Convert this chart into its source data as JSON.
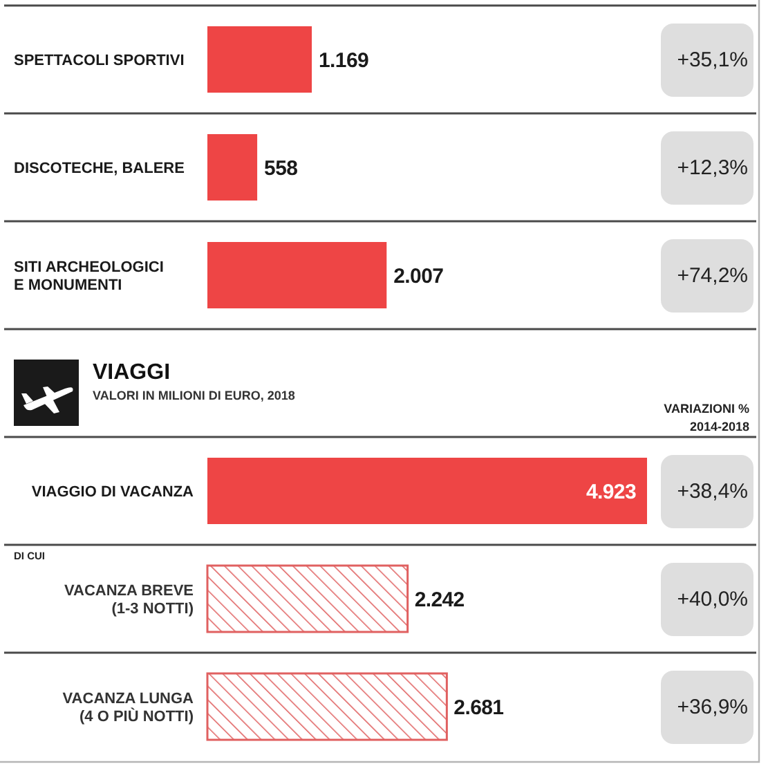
{
  "chart_data": [
    {
      "type": "bar",
      "orientation": "horizontal",
      "categories": [
        "SPETTACOLI SPORTIVI",
        "DISCOTECHE, BALERE",
        "SITI ARCHEOLOGICI\nE MONUMENTI"
      ],
      "values": [
        1169,
        558,
        2007
      ],
      "value_labels": [
        "1.169",
        "558",
        "2.007"
      ],
      "color": "#ee4545",
      "annotations": [
        "+35,1%",
        "+12,3%",
        "+74,2%"
      ]
    },
    {
      "type": "bar",
      "orientation": "horizontal",
      "title": "VIAGGI",
      "subtitle": "VALORI IN MILIONI DI EURO, 2018",
      "categories": [
        "VIAGGIO DI VACANZA",
        "VACANZA BREVE\n(1-3 NOTTI)",
        "VACANZA LUNGA\n(4 O PIÙ NOTTI)"
      ],
      "series": [
        {
          "color": "#ee4545",
          "values": [
            4923,
            null,
            null
          ],
          "value_labels": [
            "4.923",
            null,
            null
          ]
        },
        {
          "color": "#e06060",
          "values": [
            null,
            2242,
            2681
          ],
          "value_labels": [
            null,
            "2.242",
            "2.681"
          ]
        }
      ],
      "annotations": [
        "VARIAZIONI %\n2014-2018",
        "DI CUI",
        "+38,4%",
        "+40,0%",
        "+36,9%"
      ]
    }
  ]
}
